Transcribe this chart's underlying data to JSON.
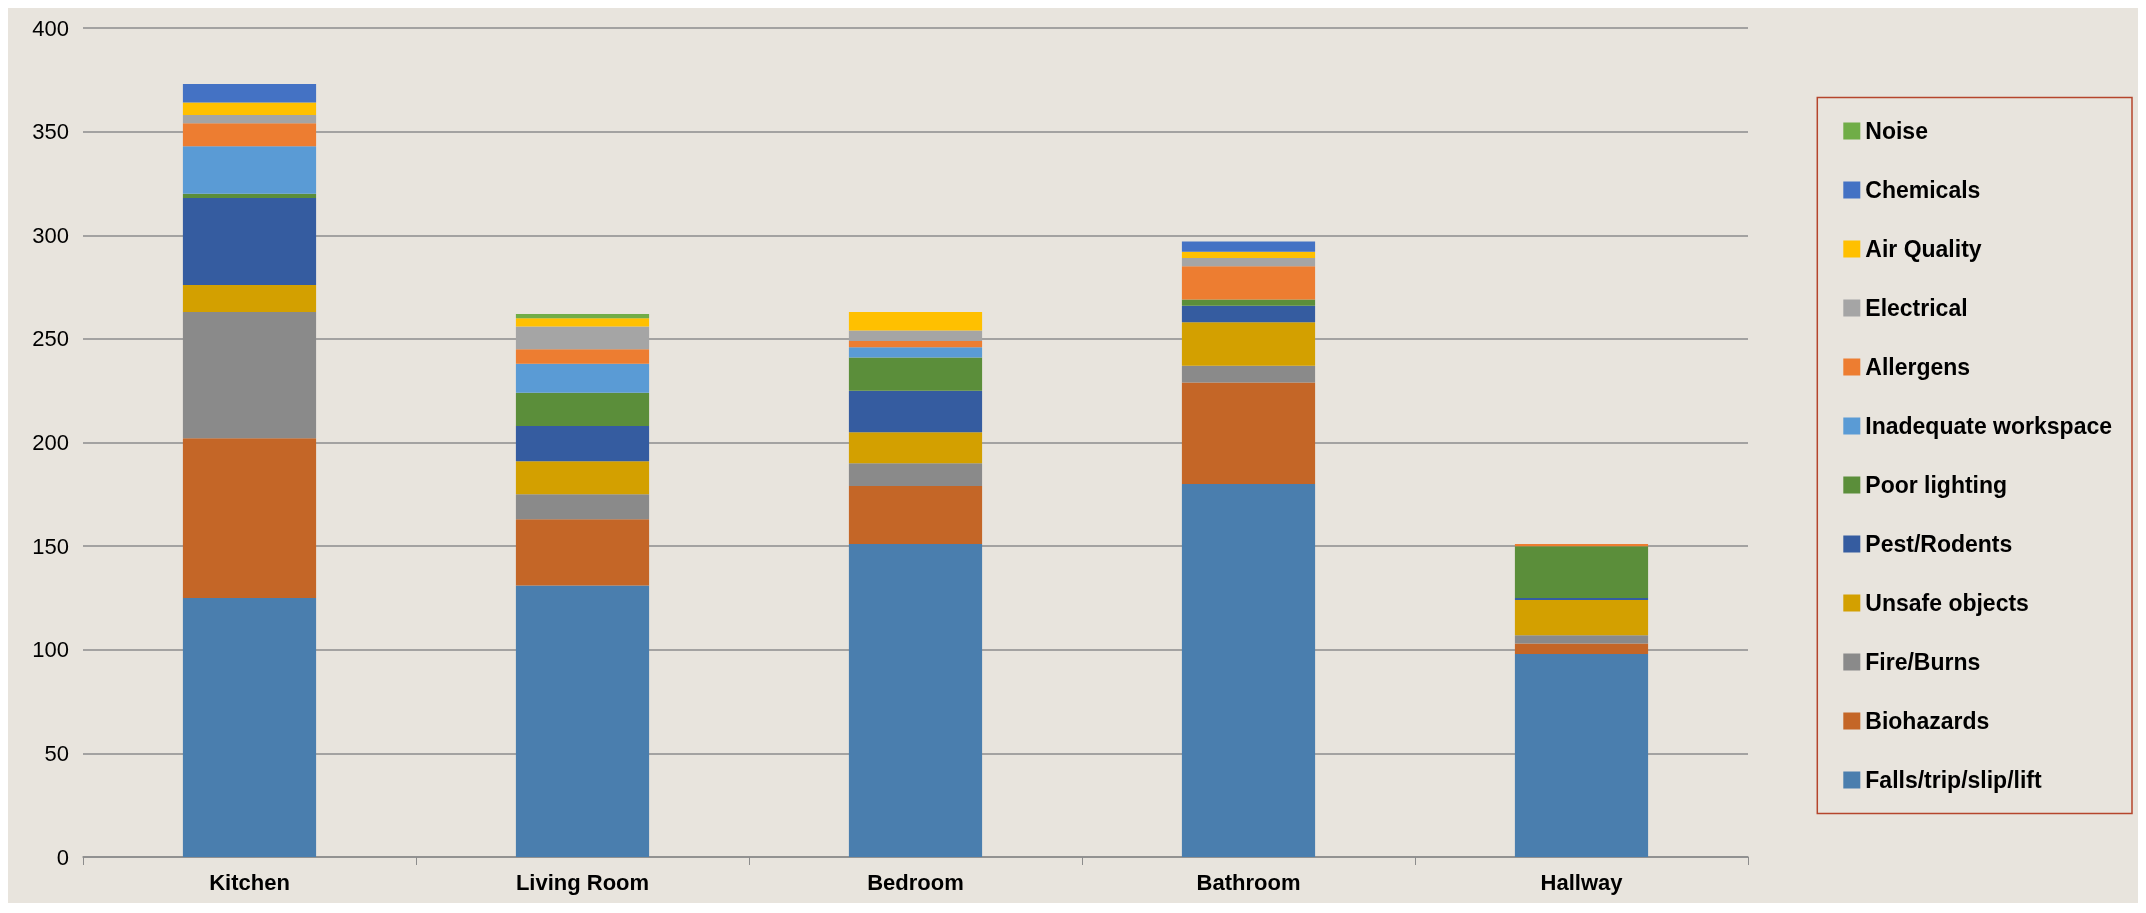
{
  "chart_data": {
    "type": "bar",
    "stacked": true,
    "categories": [
      "Kitchen",
      "Living Room",
      "Bedroom",
      "Bathroom",
      "Hallway"
    ],
    "series": [
      {
        "name": "Falls/trip/slip/lift",
        "color": "#4a7eae",
        "values": [
          125,
          131,
          151,
          180,
          98
        ]
      },
      {
        "name": "Biohazards",
        "color": "#c46627",
        "values": [
          77,
          32,
          28,
          49,
          5
        ]
      },
      {
        "name": "Fire/Burns",
        "color": "#8a8a8a",
        "values": [
          61,
          12,
          11,
          8,
          4
        ]
      },
      {
        "name": "Unsafe objects",
        "color": "#d3a000",
        "values": [
          13,
          16,
          15,
          21,
          17
        ]
      },
      {
        "name": "Pest/Rodents",
        "color": "#355ca0",
        "values": [
          42,
          17,
          20,
          8,
          1
        ]
      },
      {
        "name": "Poor lighting",
        "color": "#5b8e3a",
        "values": [
          2,
          16,
          16,
          3,
          25
        ]
      },
      {
        "name": "Inadequate workspace",
        "color": "#5a9bd5",
        "values": [
          23,
          14,
          5,
          0,
          0
        ]
      },
      {
        "name": "Allergens",
        "color": "#ed7d31",
        "values": [
          11,
          7,
          3,
          16,
          1
        ]
      },
      {
        "name": "Electrical",
        "color": "#a5a5a5",
        "values": [
          4,
          11,
          5,
          4,
          0
        ]
      },
      {
        "name": "Air Quality",
        "color": "#ffc000",
        "values": [
          6,
          4,
          9,
          3,
          0
        ]
      },
      {
        "name": "Chemicals",
        "color": "#4472c4",
        "values": [
          9,
          0,
          0,
          5,
          0
        ]
      },
      {
        "name": "Noise",
        "color": "#70ad47",
        "values": [
          0,
          2,
          0,
          0,
          0
        ]
      }
    ],
    "ylim": [
      0,
      400
    ],
    "yticks": [
      0,
      50,
      100,
      150,
      200,
      250,
      300,
      350,
      400
    ],
    "grid": "y",
    "legend": "right"
  }
}
